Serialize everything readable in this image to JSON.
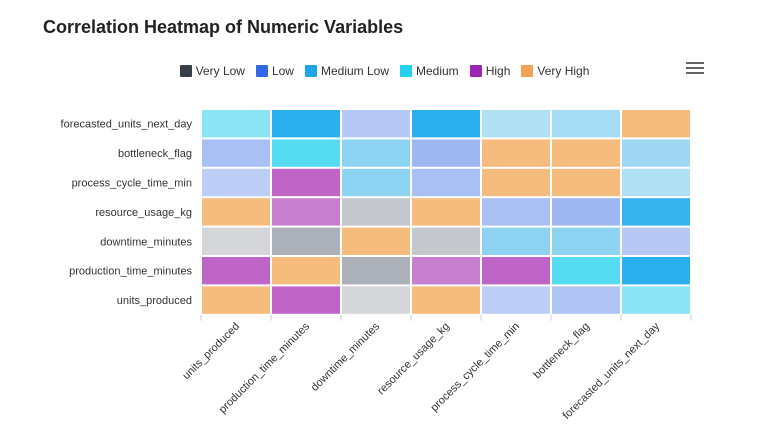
{
  "header": {
    "title": "Correlation Heatmap of Numeric Variables"
  },
  "toolbar": {
    "menu_icon": "hamburger-menu-icon"
  },
  "legend": {
    "items": [
      {
        "label": "Very Low",
        "color": "#373d49"
      },
      {
        "label": "Low",
        "color": "#3267e6"
      },
      {
        "label": "Medium Low",
        "color": "#1ea5e6"
      },
      {
        "label": "Medium",
        "color": "#22d1ed"
      },
      {
        "label": "High",
        "color": "#9e24b6"
      },
      {
        "label": "Very High",
        "color": "#f5a259"
      }
    ]
  },
  "chart_data": {
    "type": "heatmap",
    "title": "Correlation Heatmap of Numeric Variables",
    "x_categories": [
      "units_produced",
      "production_time_minutes",
      "downtime_minutes",
      "resource_usage_kg",
      "process_cycle_time_min",
      "bottleneck_flag",
      "forecasted_units_next_day"
    ],
    "y_categories": [
      "forecasted_units_next_day",
      "bottleneck_flag",
      "process_cycle_time_min",
      "resource_usage_kg",
      "downtime_minutes",
      "production_time_minutes",
      "units_produced"
    ],
    "cells": [
      [
        "#8ae4f4",
        "#2ab0ec",
        "#b8c8f6",
        "#2ab0ec",
        "#b0e0f4",
        "#a6dcf4",
        "#f6bc7e"
      ],
      [
        "#a8c0f4",
        "#56dcf0",
        "#8ed4f2",
        "#a0b8f2",
        "#f6bc7e",
        "#f6bc7e",
        "#a0d8f4"
      ],
      [
        "#bccdf6",
        "#c065c8",
        "#8ed4f2",
        "#a8c0f4",
        "#f6bc7e",
        "#f6bc7e",
        "#b0e0f4"
      ],
      [
        "#f6bc7e",
        "#c97fd0",
        "#c4c8cc",
        "#f6bc7e",
        "#a8c0f4",
        "#a0b8f2",
        "#36b2ec"
      ],
      [
        "#d4d6da",
        "#acb0b8",
        "#f6bc7e",
        "#c4c8cc",
        "#8ed4f2",
        "#8ed4f2",
        "#b8c8f6"
      ],
      [
        "#c065c8",
        "#f6bc7e",
        "#acb0b8",
        "#c97fd0",
        "#c065c8",
        "#56dcf0",
        "#2ab0ec"
      ],
      [
        "#f6bc7e",
        "#c065c8",
        "#d4d6da",
        "#f6bc7e",
        "#bccdf6",
        "#b0c4f4",
        "#8ae4f4"
      ]
    ],
    "legend_position": "top-center",
    "grid": false
  }
}
